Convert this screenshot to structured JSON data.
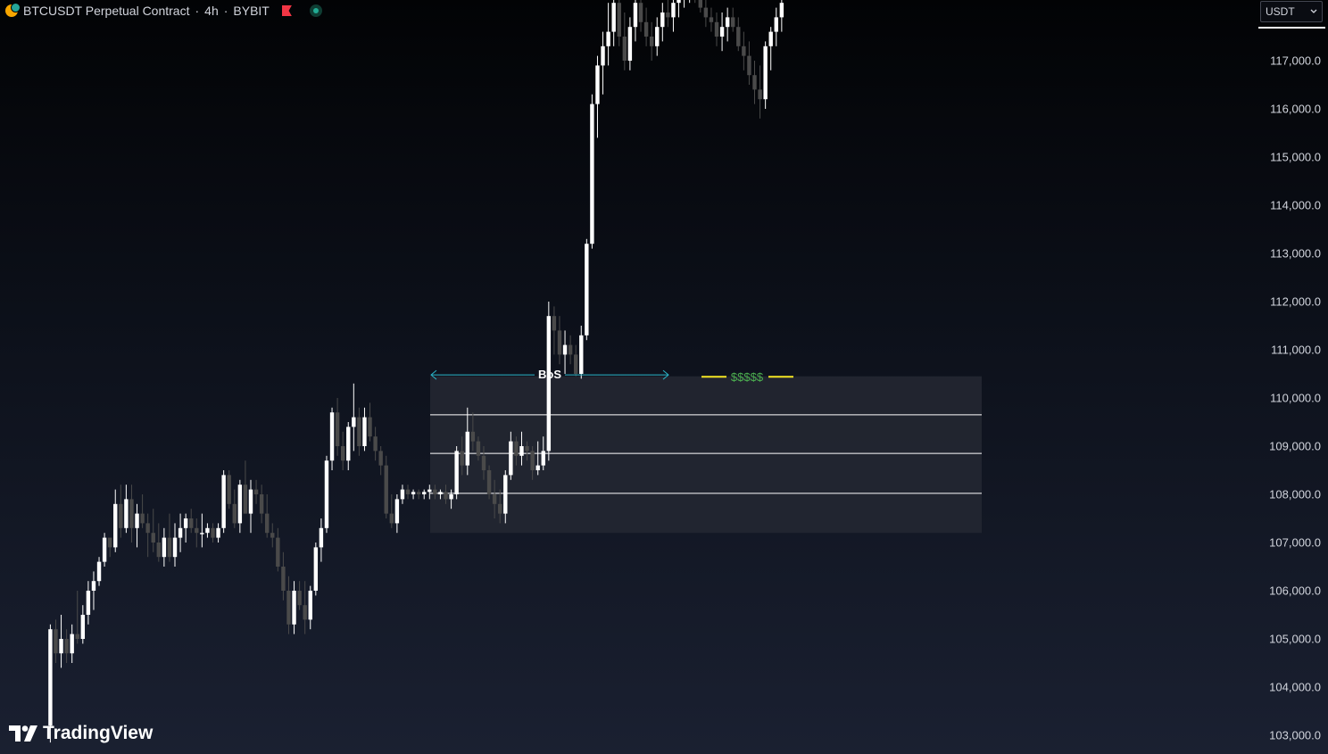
{
  "header": {
    "symbol": "BTCUSDT Perpetual Contract",
    "separator1": "·",
    "timeframe": "4h",
    "separator2": "·",
    "exchange": "BYBIT"
  },
  "currency_selector": {
    "value": "USDT"
  },
  "branding": {
    "logo_text": "TradingView"
  },
  "annotations": {
    "bos_label": "BoS",
    "liquidity_label": "$$$$$"
  },
  "colors": {
    "bull_candle": "#ffffff",
    "bear_candle": "#4a4a4a",
    "bos_line": "#2bb5c8",
    "liquidity_line": "#f5e623",
    "liquidity_text": "#4caf50",
    "zone_fill": "#242833",
    "zone_lines": "#ffffff"
  },
  "chart_data": {
    "type": "candlestick",
    "price_axis": {
      "min": 103000,
      "max": 118000,
      "ticks": [
        "117,000.0",
        "116,000.0",
        "115,000.0",
        "114,000.0",
        "113,000.0",
        "112,000.0",
        "111,000.0",
        "110,000.0",
        "109,000.0",
        "108,000.0",
        "107,000.0",
        "106,000.0",
        "105,000.0",
        "104,000.0",
        "103,000.0"
      ]
    },
    "zone": {
      "top": 110450,
      "bottom": 107200,
      "levels": [
        109650,
        108850,
        108020
      ]
    },
    "bos_level": 110480,
    "liquidity_level": 110440,
    "candles": [
      [
        103200,
        105300,
        102850,
        105200
      ],
      [
        105200,
        105400,
        104500,
        104700
      ],
      [
        104700,
        105500,
        104400,
        105000
      ],
      [
        105000,
        105200,
        104500,
        104700
      ],
      [
        104700,
        105300,
        104500,
        105100
      ],
      [
        105100,
        106000,
        104900,
        105000
      ],
      [
        105000,
        105700,
        104900,
        105500
      ],
      [
        105500,
        106200,
        105300,
        106000
      ],
      [
        106000,
        106400,
        105600,
        106200
      ],
      [
        106200,
        106700,
        106100,
        106600
      ],
      [
        106600,
        107200,
        106500,
        107100
      ],
      [
        107100,
        107100,
        106700,
        106900
      ],
      [
        106900,
        108100,
        106800,
        107800
      ],
      [
        107800,
        108200,
        107100,
        107300
      ],
      [
        107300,
        108200,
        107200,
        107900
      ],
      [
        107900,
        108200,
        107000,
        107300
      ],
      [
        107300,
        107800,
        106900,
        107600
      ],
      [
        107600,
        108000,
        107300,
        107400
      ],
      [
        107400,
        107600,
        106700,
        107200
      ],
      [
        107200,
        107700,
        106800,
        107000
      ],
      [
        107000,
        107400,
        106600,
        106700
      ],
      [
        106700,
        107300,
        106500,
        107100
      ],
      [
        107100,
        107600,
        106600,
        106700
      ],
      [
        106700,
        107400,
        106500,
        107100
      ],
      [
        107100,
        107600,
        106800,
        107300
      ],
      [
        107300,
        107600,
        107000,
        107500
      ],
      [
        107500,
        107700,
        107200,
        107300
      ],
      [
        107300,
        107500,
        106900,
        107200
      ],
      [
        107200,
        107600,
        106900,
        107200
      ],
      [
        107200,
        107400,
        107100,
        107300
      ],
      [
        107300,
        107400,
        107000,
        107100
      ],
      [
        107100,
        107400,
        107000,
        107300
      ],
      [
        107300,
        108500,
        107200,
        108400
      ],
      [
        108400,
        108500,
        107700,
        107800
      ],
      [
        107800,
        108100,
        107300,
        107400
      ],
      [
        107400,
        108300,
        107200,
        108200
      ],
      [
        108200,
        108700,
        107600,
        107600
      ],
      [
        107600,
        108300,
        107200,
        108100
      ],
      [
        108100,
        108300,
        107800,
        108000
      ],
      [
        108000,
        108200,
        107400,
        107600
      ],
      [
        107600,
        108000,
        107100,
        107200
      ],
      [
        107200,
        107400,
        106900,
        107100
      ],
      [
        107100,
        107300,
        106400,
        106500
      ],
      [
        106500,
        106800,
        105800,
        106000
      ],
      [
        106000,
        106300,
        105100,
        105300
      ],
      [
        105300,
        106200,
        105100,
        106000
      ],
      [
        106000,
        106200,
        105600,
        105700
      ],
      [
        105700,
        106200,
        105100,
        105400
      ],
      [
        105400,
        106100,
        105200,
        106000
      ],
      [
        106000,
        107000,
        105900,
        106900
      ],
      [
        106900,
        107500,
        106600,
        107300
      ],
      [
        107300,
        108800,
        107200,
        108700
      ],
      [
        108700,
        109800,
        108500,
        109700
      ],
      [
        109700,
        110000,
        108800,
        109000
      ],
      [
        109000,
        109300,
        108500,
        108700
      ],
      [
        108700,
        109500,
        108500,
        109400
      ],
      [
        109400,
        110300,
        108900,
        109600
      ],
      [
        109600,
        109800,
        108800,
        109000
      ],
      [
        109000,
        109800,
        108900,
        109600
      ],
      [
        109600,
        109900,
        109100,
        109200
      ],
      [
        109200,
        109400,
        108700,
        108900
      ],
      [
        108900,
        109000,
        108400,
        108600
      ],
      [
        108600,
        108800,
        107500,
        107600
      ],
      [
        107600,
        108000,
        107300,
        107400
      ],
      [
        107400,
        108000,
        107200,
        107900
      ],
      [
        107900,
        108200,
        107800,
        108100
      ],
      [
        108100,
        108200,
        107900,
        108000
      ],
      [
        108000,
        108100,
        107900,
        108050
      ],
      [
        108050,
        108100,
        107900,
        108000
      ],
      [
        108000,
        108100,
        107900,
        108050
      ],
      [
        108050,
        108200,
        107900,
        108100
      ],
      [
        108100,
        108200,
        107900,
        108000
      ],
      [
        108000,
        108100,
        107900,
        108050
      ],
      [
        108050,
        108200,
        107800,
        107900
      ],
      [
        107900,
        108100,
        107700,
        108000
      ],
      [
        108000,
        109000,
        107900,
        108900
      ],
      [
        108900,
        109200,
        108400,
        108600
      ],
      [
        108600,
        109800,
        108400,
        109300
      ],
      [
        109300,
        109700,
        108900,
        109100
      ],
      [
        109100,
        109200,
        108700,
        108800
      ],
      [
        108800,
        109000,
        108300,
        108500
      ],
      [
        108500,
        108600,
        107900,
        108000
      ],
      [
        108000,
        108300,
        107500,
        107800
      ],
      [
        107800,
        108100,
        107400,
        107600
      ],
      [
        107600,
        108500,
        107400,
        108400
      ],
      [
        108400,
        109300,
        108300,
        109100
      ],
      [
        109100,
        109200,
        108600,
        108800
      ],
      [
        108800,
        109300,
        108600,
        109000
      ],
      [
        109000,
        109100,
        108700,
        108900
      ],
      [
        108900,
        109000,
        108300,
        108500
      ],
      [
        108500,
        109100,
        108400,
        108600
      ],
      [
        108600,
        109200,
        108500,
        108900
      ],
      [
        108900,
        112000,
        108700,
        111700
      ],
      [
        111700,
        111900,
        110900,
        111400
      ],
      [
        111400,
        111700,
        110700,
        110900
      ],
      [
        110900,
        111400,
        110500,
        111100
      ],
      [
        111100,
        111300,
        110700,
        110900
      ],
      [
        110900,
        111100,
        110450,
        110500
      ],
      [
        110500,
        111500,
        110400,
        111300
      ],
      [
        111300,
        113300,
        111200,
        113200
      ],
      [
        113200,
        116300,
        113100,
        116100
      ],
      [
        116100,
        117100,
        115400,
        116900
      ],
      [
        116900,
        117600,
        116300,
        117300
      ],
      [
        117300,
        118200,
        116900,
        117600
      ],
      [
        117600,
        118500,
        117300,
        118200
      ],
      [
        118200,
        118300,
        117300,
        117500
      ],
      [
        117500,
        118000,
        116800,
        117000
      ],
      [
        117000,
        117900,
        116800,
        117700
      ],
      [
        117700,
        118300,
        117400,
        118200
      ],
      [
        118200,
        118400,
        117600,
        117800
      ],
      [
        117800,
        118100,
        117300,
        117500
      ],
      [
        117500,
        117800,
        117000,
        117300
      ],
      [
        117300,
        117900,
        117100,
        117700
      ],
      [
        117700,
        118200,
        117400,
        118000
      ],
      [
        118000,
        118300,
        117700,
        117900
      ],
      [
        117900,
        118300,
        117600,
        118200
      ],
      [
        118200,
        118500,
        117900,
        118300
      ],
      [
        118300,
        118600,
        118100,
        118400
      ],
      [
        118400,
        118600,
        118200,
        118500
      ],
      [
        118500,
        118600,
        118200,
        118400
      ],
      [
        118400,
        118700,
        118000,
        118100
      ],
      [
        118100,
        118300,
        117700,
        117900
      ],
      [
        117900,
        118100,
        117600,
        117800
      ],
      [
        117800,
        118000,
        117300,
        117500
      ],
      [
        117500,
        118000,
        117200,
        117700
      ],
      [
        117700,
        118100,
        117400,
        117900
      ],
      [
        117900,
        118100,
        117600,
        117700
      ],
      [
        117700,
        117900,
        117200,
        117300
      ],
      [
        117300,
        117600,
        116800,
        117100
      ],
      [
        117100,
        117400,
        116500,
        116700
      ],
      [
        116700,
        117000,
        116100,
        116400
      ],
      [
        116400,
        116900,
        115800,
        116200
      ],
      [
        116200,
        117400,
        116000,
        117300
      ],
      [
        117300,
        117700,
        116800,
        117600
      ],
      [
        117600,
        118100,
        117300,
        117900
      ],
      [
        117900,
        118300,
        117600,
        118200
      ]
    ]
  }
}
